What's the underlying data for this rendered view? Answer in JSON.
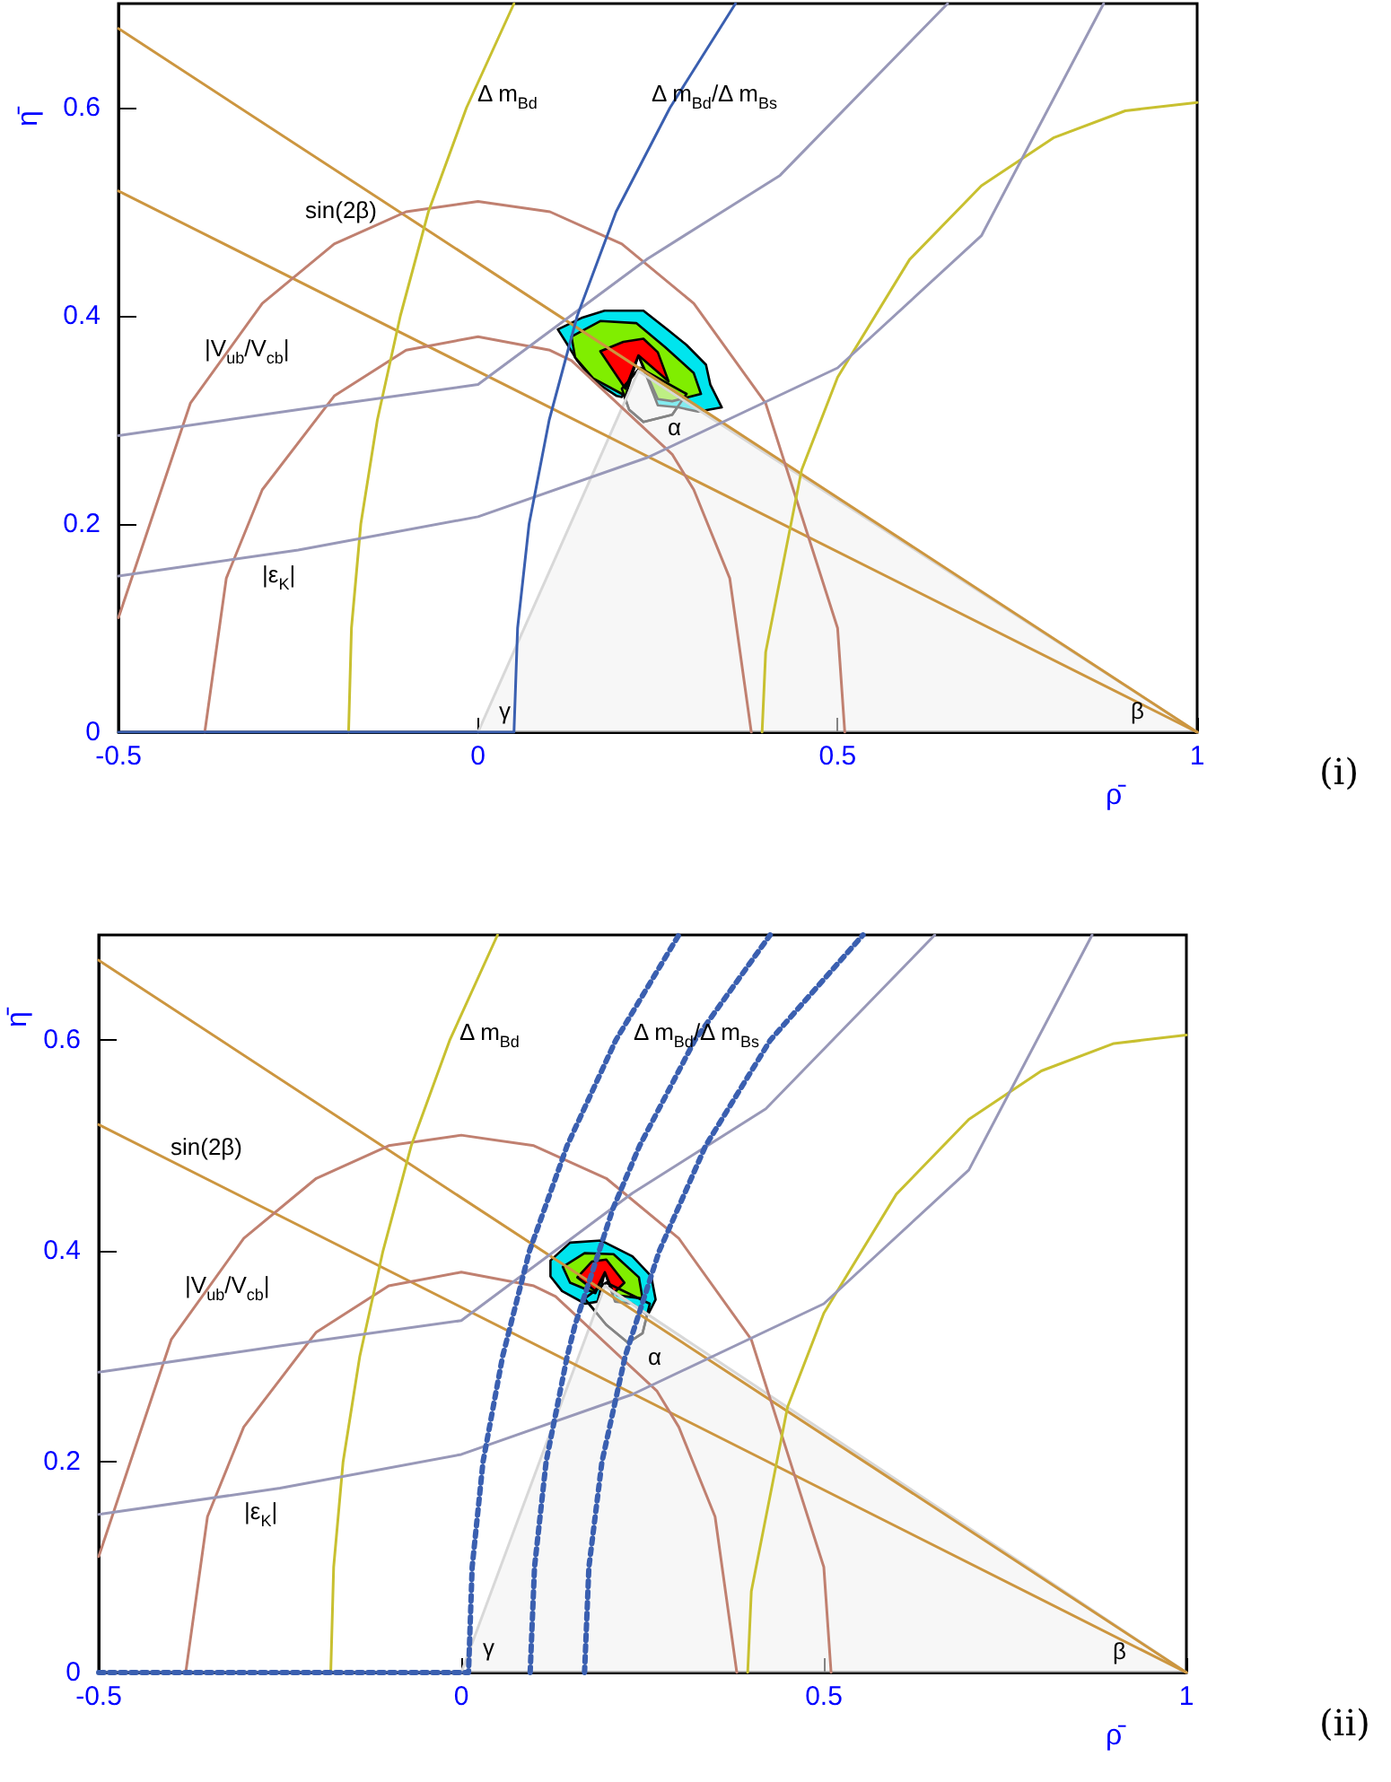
{
  "chart_data": [
    {
      "type": "line",
      "xlabel": "ρ̄",
      "ylabel": "η̄",
      "xlim": [
        -0.5,
        1
      ],
      "ylim": [
        0,
        0.7
      ],
      "xticks": [
        -0.5,
        0,
        0.5,
        1
      ],
      "yticks": [
        0,
        0.2,
        0.4,
        0.6
      ],
      "marker": "none",
      "line_style": "solid",
      "annotations": [
        "Δ m$_{Bd}$",
        "Δ m$_{Bd}$/Δ m$_{Bs}$",
        "sin(2β)",
        "|V$_{ub}$/V$_{cb}$|",
        "|ε$_{K}$|",
        "γ",
        "β",
        "α",
        "(i)"
      ],
      "series": [
        {
          "type": "area",
          "color": "#f0f0f0",
          "x": [
            0,
            0.223,
            1
          ],
          "values": [
            0,
            0.347,
            0
          ]
        },
        {
          "color": "#cc9640",
          "x": [
            -0.5,
            1
          ],
          "values": [
            0.676,
            0
          ]
        },
        {
          "color": "#cc9640",
          "x": [
            -0.5,
            1
          ],
          "values": [
            0.52,
            0
          ]
        },
        {
          "color": "#c08070",
          "x": [
            -0.5,
            -0.4,
            -0.3,
            -0.2,
            -0.1,
            0,
            0.1,
            0.2,
            0.3,
            0.4,
            0.5,
            0.51
          ],
          "values": [
            0.11,
            0.316,
            0.412,
            0.469,
            0.5,
            0.51,
            0.5,
            0.469,
            0.412,
            0.316,
            0.1,
            0
          ]
        },
        {
          "color": "#c08070",
          "x": [
            -0.38,
            -0.35,
            -0.3,
            -0.2,
            -0.1,
            0,
            0.1,
            0.13,
            0.27,
            0.3,
            0.35,
            0.38
          ],
          "values": [
            0,
            0.148,
            0.233,
            0.323,
            0.367,
            0.38,
            0.367,
            0.357,
            0.267,
            0.233,
            0.148,
            0
          ]
        },
        {
          "color": "#c8c030",
          "x": [
            -0.18,
            -0.176,
            -0.163,
            -0.14,
            -0.108,
            -0.069,
            -0.016,
            0.05
          ],
          "values": [
            0,
            0.1,
            0.2,
            0.3,
            0.4,
            0.5,
            0.6,
            0.7
          ]
        },
        {
          "color": "#c8c030",
          "x": [
            0.395,
            0.4,
            0.45,
            0.5,
            0.6,
            0.7,
            0.8,
            0.9,
            1
          ],
          "values": [
            0,
            0.077,
            0.252,
            0.341,
            0.454,
            0.525,
            0.571,
            0.597,
            0.605
          ]
        },
        {
          "color": "#9898b8",
          "x": [
            -0.5,
            -0.25,
            0,
            0.236,
            0.5,
            0.7,
            0.87
          ],
          "values": [
            0.15,
            0.175,
            0.207,
            0.264,
            0.35,
            0.477,
            0.7
          ]
        },
        {
          "color": "#9898b8",
          "x": [
            -0.5,
            -0.25,
            0,
            0.236,
            0.42,
            0.653
          ],
          "values": [
            0.285,
            0.31,
            0.334,
            0.455,
            0.535,
            0.7
          ]
        },
        {
          "color": "#3a5fb0",
          "x": [
            -0.5,
            0.05,
            0.055,
            0.071,
            0.099,
            0.138,
            0.192,
            0.267,
            0.358
          ],
          "values": [
            0,
            0,
            0.1,
            0.2,
            0.3,
            0.4,
            0.5,
            0.6,
            0.7
          ]
        }
      ]
    },
    {
      "type": "line",
      "xlabel": "ρ̄",
      "ylabel": "η̄",
      "xlim": [
        -0.5,
        1
      ],
      "ylim": [
        0,
        0.7
      ],
      "xticks": [
        -0.5,
        0,
        0.5,
        1
      ],
      "yticks": [
        0,
        0.2,
        0.4,
        0.6
      ],
      "marker": "none",
      "line_style": "solid",
      "annotations": [
        "Δ m$_{Bd}$",
        "Δ m$_{Bd}$/Δ m$_{Bs}$",
        "sin(2β)",
        "|V$_{ub}$/V$_{cb}$|",
        "|ε$_{K}$|",
        "γ",
        "β",
        "α",
        "(ii)"
      ],
      "series": [
        {
          "type": "area",
          "color": "#f0f0f0",
          "x": [
            0,
            0.198,
            1
          ],
          "values": [
            0,
            0.367,
            0
          ]
        },
        {
          "color": "#cc9640",
          "x": [
            -0.5,
            1
          ],
          "values": [
            0.676,
            0
          ]
        },
        {
          "color": "#cc9640",
          "x": [
            -0.5,
            1
          ],
          "values": [
            0.52,
            0
          ]
        },
        {
          "color": "#c08070",
          "x": [
            -0.5,
            -0.4,
            -0.3,
            -0.2,
            -0.1,
            0,
            0.1,
            0.2,
            0.3,
            0.4,
            0.5,
            0.51
          ],
          "values": [
            0.11,
            0.316,
            0.412,
            0.469,
            0.5,
            0.51,
            0.5,
            0.469,
            0.412,
            0.316,
            0.1,
            0
          ]
        },
        {
          "color": "#c08070",
          "x": [
            -0.38,
            -0.35,
            -0.3,
            -0.2,
            -0.1,
            0,
            0.1,
            0.13,
            0.27,
            0.3,
            0.35,
            0.38
          ],
          "values": [
            0,
            0.148,
            0.233,
            0.323,
            0.367,
            0.38,
            0.367,
            0.357,
            0.267,
            0.233,
            0.148,
            0
          ]
        },
        {
          "color": "#c8c030",
          "x": [
            -0.18,
            -0.176,
            -0.163,
            -0.14,
            -0.108,
            -0.069,
            -0.016,
            0.05
          ],
          "values": [
            0,
            0.1,
            0.2,
            0.3,
            0.4,
            0.5,
            0.6,
            0.7
          ]
        },
        {
          "color": "#c8c030",
          "x": [
            0.395,
            0.4,
            0.45,
            0.5,
            0.6,
            0.7,
            0.8,
            0.9,
            1
          ],
          "values": [
            0,
            0.077,
            0.252,
            0.341,
            0.454,
            0.525,
            0.571,
            0.597,
            0.605
          ]
        },
        {
          "color": "#9898b8",
          "x": [
            -0.5,
            -0.25,
            0,
            0.236,
            0.5,
            0.7,
            0.87
          ],
          "values": [
            0.15,
            0.175,
            0.207,
            0.264,
            0.35,
            0.477,
            0.7
          ]
        },
        {
          "color": "#9898b8",
          "x": [
            -0.5,
            -0.25,
            0,
            0.236,
            0.42,
            0.653
          ],
          "values": [
            0.285,
            0.31,
            0.334,
            0.455,
            0.535,
            0.7
          ]
        },
        {
          "color": "#3a5fb0",
          "line_style": "dotted",
          "x": [
            -0.5,
            0.01,
            0.015,
            0.03,
            0.057,
            0.094,
            0.146,
            0.213,
            0.3
          ],
          "values": [
            0,
            0,
            0.1,
            0.2,
            0.3,
            0.4,
            0.5,
            0.6,
            0.7
          ]
        },
        {
          "color": "#3a5fb0",
          "line_style": "dotted",
          "x": [
            0.095,
            0.101,
            0.117,
            0.146,
            0.157,
            0.209,
            0.246,
            0.322,
            0.426
          ],
          "values": [
            0,
            0.1,
            0.2,
            0.3,
            0.33,
            0.44,
            0.5,
            0.6,
            0.7
          ]
        },
        {
          "color": "#3a5fb0",
          "line_style": "dotted",
          "x": [
            0.17,
            0.176,
            0.194,
            0.226,
            0.273,
            0.337,
            0.426,
            0.554
          ],
          "values": [
            0,
            0.1,
            0.2,
            0.3,
            0.4,
            0.5,
            0.6,
            0.7
          ]
        }
      ]
    }
  ]
}
